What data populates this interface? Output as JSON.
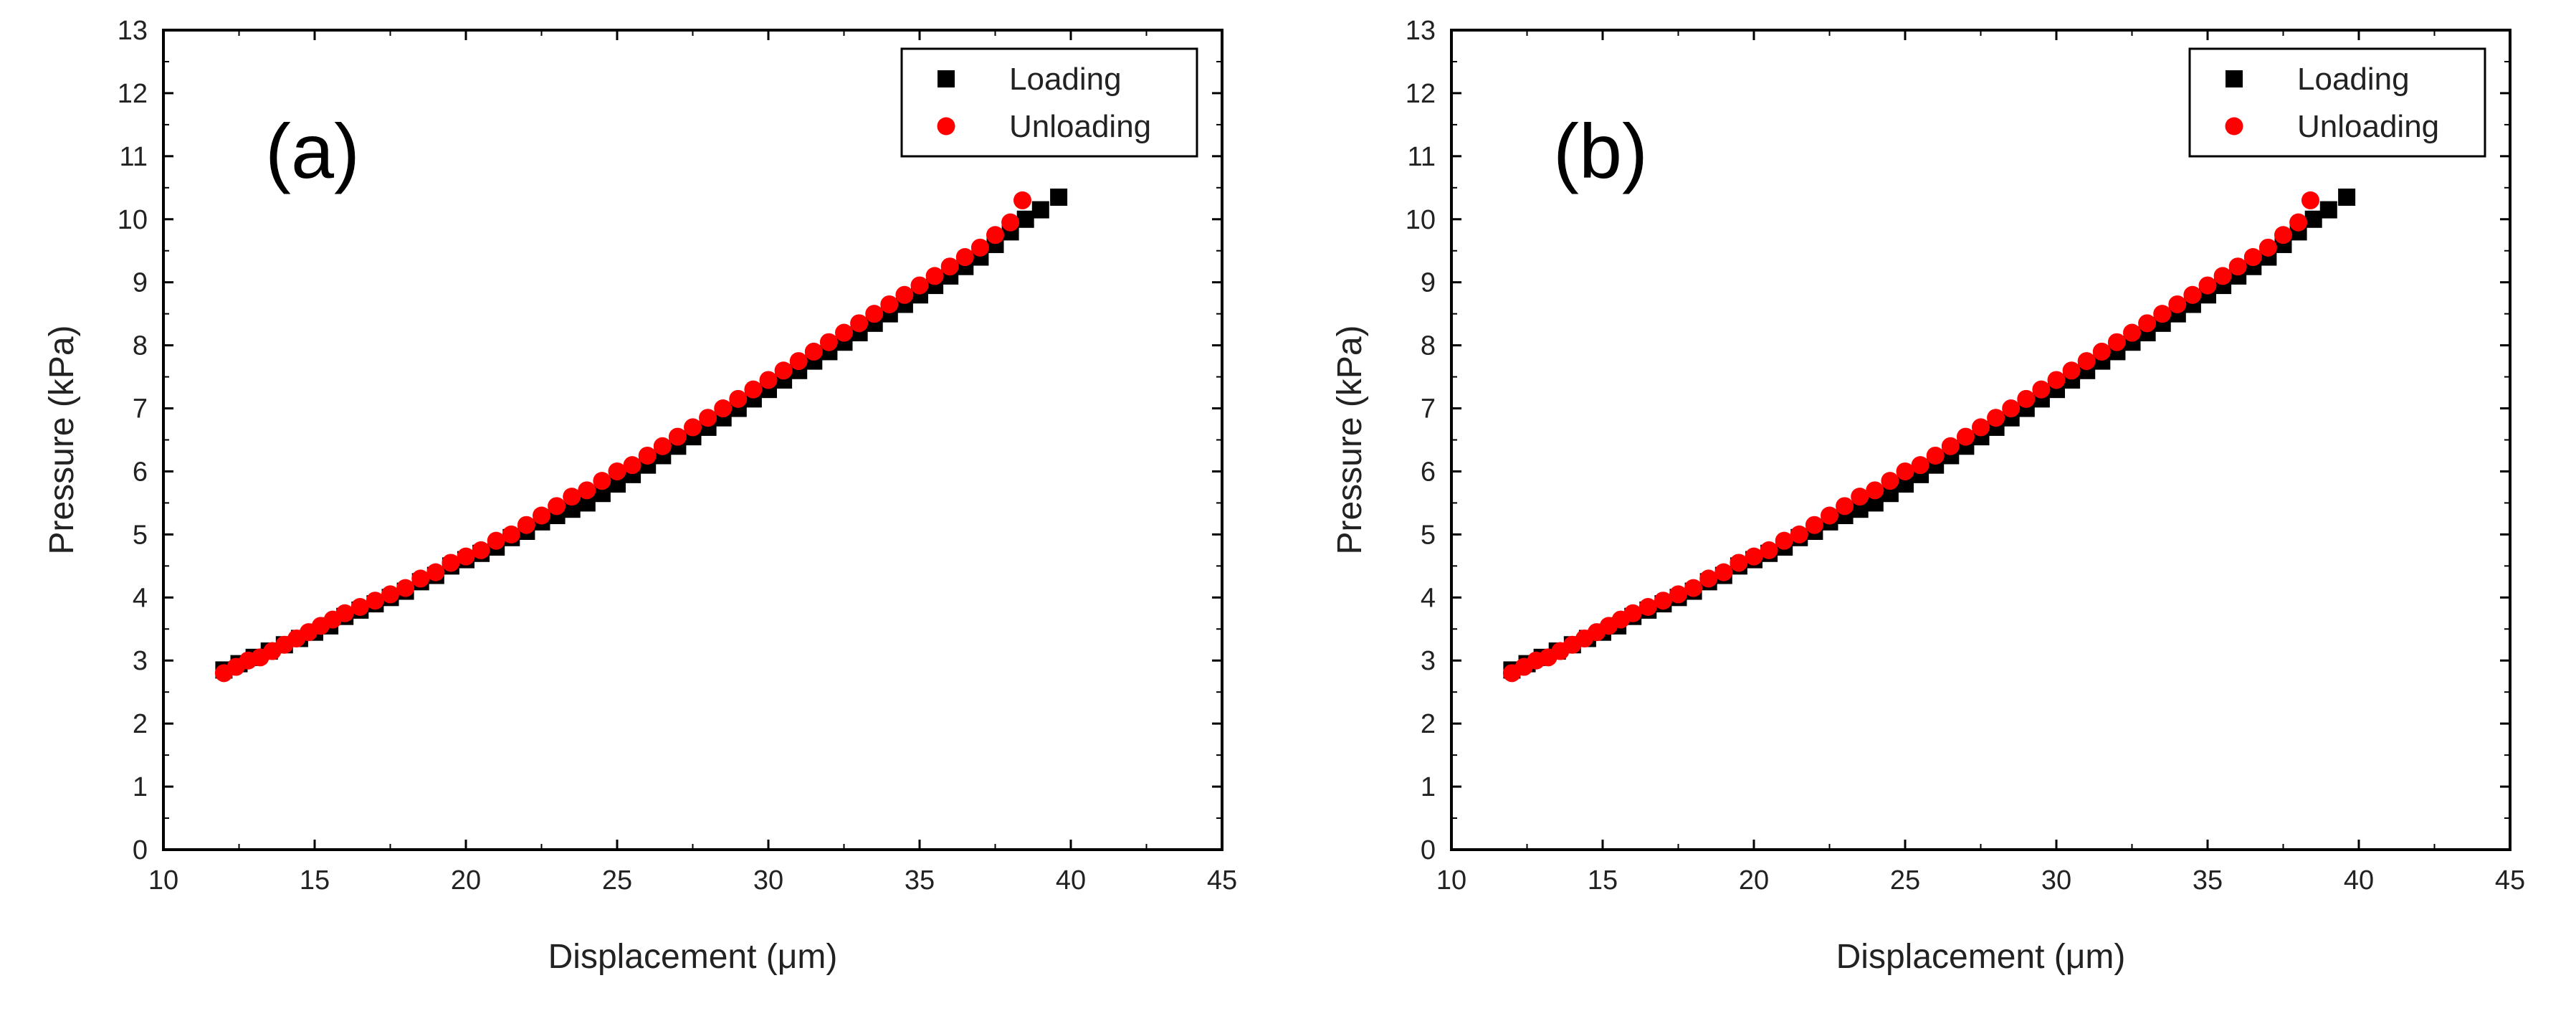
{
  "chart_data": [
    {
      "type": "scatter",
      "panel_label": "(a)",
      "xlabel": "Displacement (μm)",
      "ylabel": "Pressure (kPa)",
      "xlim": [
        10,
        45
      ],
      "ylim": [
        0,
        13
      ],
      "xticks": [
        "10",
        "15",
        "20",
        "25",
        "30",
        "35",
        "40",
        "45"
      ],
      "yticks": [
        "0",
        "1",
        "2",
        "3",
        "4",
        "5",
        "6",
        "7",
        "8",
        "9",
        "10",
        "11",
        "12",
        "13"
      ],
      "legend": {
        "position": "top-right",
        "entries": [
          "Loading",
          "Unloading"
        ]
      },
      "series": [
        {
          "name": "Loading",
          "marker": "square",
          "color": "#000000",
          "x": [
            12.0,
            12.5,
            13.0,
            13.5,
            14.0,
            14.5,
            15.0,
            15.5,
            16.0,
            16.5,
            17.0,
            17.5,
            18.0,
            18.5,
            19.0,
            19.5,
            20.0,
            20.5,
            21.0,
            21.5,
            22.0,
            22.5,
            23.0,
            23.5,
            24.0,
            24.5,
            25.0,
            25.5,
            26.0,
            26.5,
            27.0,
            27.5,
            28.0,
            28.5,
            29.0,
            29.5,
            30.0,
            30.5,
            31.0,
            31.5,
            32.0,
            32.5,
            33.0,
            33.5,
            34.0,
            34.5,
            35.0,
            35.5,
            36.0,
            36.5,
            37.0,
            37.5,
            38.0,
            38.5,
            39.0,
            39.6
          ],
          "y": [
            2.85,
            2.95,
            3.05,
            3.15,
            3.25,
            3.35,
            3.45,
            3.55,
            3.7,
            3.8,
            3.9,
            4.0,
            4.1,
            4.25,
            4.35,
            4.5,
            4.6,
            4.7,
            4.8,
            4.95,
            5.05,
            5.2,
            5.3,
            5.4,
            5.5,
            5.65,
            5.8,
            5.95,
            6.1,
            6.25,
            6.4,
            6.55,
            6.7,
            6.85,
            7.0,
            7.15,
            7.3,
            7.45,
            7.6,
            7.75,
            7.9,
            8.05,
            8.2,
            8.35,
            8.5,
            8.65,
            8.8,
            8.95,
            9.1,
            9.25,
            9.4,
            9.6,
            9.8,
            10.0,
            10.15,
            10.35
          ]
        },
        {
          "name": "Unloading",
          "marker": "circle",
          "color": "#ff0000",
          "x": [
            12.0,
            12.4,
            12.8,
            13.2,
            13.6,
            14.0,
            14.4,
            14.8,
            15.2,
            15.6,
            16.0,
            16.5,
            17.0,
            17.5,
            18.0,
            18.5,
            19.0,
            19.5,
            20.0,
            20.5,
            21.0,
            21.5,
            22.0,
            22.5,
            23.0,
            23.5,
            24.0,
            24.5,
            25.0,
            25.5,
            26.0,
            26.5,
            27.0,
            27.5,
            28.0,
            28.5,
            29.0,
            29.5,
            30.0,
            30.5,
            31.0,
            31.5,
            32.0,
            32.5,
            33.0,
            33.5,
            34.0,
            34.5,
            35.0,
            35.5,
            36.0,
            36.5,
            37.0,
            37.5,
            38.0,
            38.4
          ],
          "y": [
            2.8,
            2.9,
            3.0,
            3.05,
            3.15,
            3.25,
            3.35,
            3.45,
            3.55,
            3.65,
            3.75,
            3.85,
            3.95,
            4.05,
            4.15,
            4.3,
            4.4,
            4.55,
            4.65,
            4.75,
            4.9,
            5.0,
            5.15,
            5.3,
            5.45,
            5.6,
            5.7,
            5.85,
            6.0,
            6.1,
            6.25,
            6.4,
            6.55,
            6.7,
            6.85,
            7.0,
            7.15,
            7.3,
            7.45,
            7.6,
            7.75,
            7.9,
            8.05,
            8.2,
            8.35,
            8.5,
            8.65,
            8.8,
            8.95,
            9.1,
            9.25,
            9.4,
            9.55,
            9.75,
            9.95,
            10.3
          ]
        }
      ]
    },
    {
      "type": "scatter",
      "panel_label": "(b)",
      "xlabel": "Displacement (μm)",
      "ylabel": "Pressure (kPa)",
      "xlim": [
        10,
        45
      ],
      "ylim": [
        0,
        13
      ],
      "xticks": [
        "10",
        "15",
        "20",
        "25",
        "30",
        "35",
        "40",
        "45"
      ],
      "yticks": [
        "0",
        "1",
        "2",
        "3",
        "4",
        "5",
        "6",
        "7",
        "8",
        "9",
        "10",
        "11",
        "12",
        "13"
      ],
      "legend": {
        "position": "top-right",
        "entries": [
          "Loading",
          "Unloading"
        ]
      },
      "series": [
        {
          "name": "Loading",
          "marker": "square",
          "color": "#000000",
          "x": [
            12.0,
            12.5,
            13.0,
            13.5,
            14.0,
            14.5,
            15.0,
            15.5,
            16.0,
            16.5,
            17.0,
            17.5,
            18.0,
            18.5,
            19.0,
            19.5,
            20.0,
            20.5,
            21.0,
            21.5,
            22.0,
            22.5,
            23.0,
            23.5,
            24.0,
            24.5,
            25.0,
            25.5,
            26.0,
            26.5,
            27.0,
            27.5,
            28.0,
            28.5,
            29.0,
            29.5,
            30.0,
            30.5,
            31.0,
            31.5,
            32.0,
            32.5,
            33.0,
            33.5,
            34.0,
            34.5,
            35.0,
            35.5,
            36.0,
            36.5,
            37.0,
            37.5,
            38.0,
            38.5,
            39.0,
            39.6
          ],
          "y": [
            2.85,
            2.95,
            3.05,
            3.15,
            3.25,
            3.35,
            3.45,
            3.55,
            3.7,
            3.8,
            3.9,
            4.0,
            4.1,
            4.25,
            4.35,
            4.5,
            4.6,
            4.7,
            4.8,
            4.95,
            5.05,
            5.2,
            5.3,
            5.4,
            5.5,
            5.65,
            5.8,
            5.95,
            6.1,
            6.25,
            6.4,
            6.55,
            6.7,
            6.85,
            7.0,
            7.15,
            7.3,
            7.45,
            7.6,
            7.75,
            7.9,
            8.05,
            8.2,
            8.35,
            8.5,
            8.65,
            8.8,
            8.95,
            9.1,
            9.25,
            9.4,
            9.6,
            9.8,
            10.0,
            10.15,
            10.35
          ]
        },
        {
          "name": "Unloading",
          "marker": "circle",
          "color": "#ff0000",
          "x": [
            12.0,
            12.4,
            12.8,
            13.2,
            13.6,
            14.0,
            14.4,
            14.8,
            15.2,
            15.6,
            16.0,
            16.5,
            17.0,
            17.5,
            18.0,
            18.5,
            19.0,
            19.5,
            20.0,
            20.5,
            21.0,
            21.5,
            22.0,
            22.5,
            23.0,
            23.5,
            24.0,
            24.5,
            25.0,
            25.5,
            26.0,
            26.5,
            27.0,
            27.5,
            28.0,
            28.5,
            29.0,
            29.5,
            30.0,
            30.5,
            31.0,
            31.5,
            32.0,
            32.5,
            33.0,
            33.5,
            34.0,
            34.5,
            35.0,
            35.5,
            36.0,
            36.5,
            37.0,
            37.5,
            38.0,
            38.4
          ],
          "y": [
            2.8,
            2.9,
            3.0,
            3.05,
            3.15,
            3.25,
            3.35,
            3.45,
            3.55,
            3.65,
            3.75,
            3.85,
            3.95,
            4.05,
            4.15,
            4.3,
            4.4,
            4.55,
            4.65,
            4.75,
            4.9,
            5.0,
            5.15,
            5.3,
            5.45,
            5.6,
            5.7,
            5.85,
            6.0,
            6.1,
            6.25,
            6.4,
            6.55,
            6.7,
            6.85,
            7.0,
            7.15,
            7.3,
            7.45,
            7.6,
            7.75,
            7.9,
            8.05,
            8.2,
            8.35,
            8.5,
            8.65,
            8.8,
            8.95,
            9.1,
            9.25,
            9.4,
            9.55,
            9.75,
            9.95,
            10.3
          ]
        }
      ]
    }
  ]
}
